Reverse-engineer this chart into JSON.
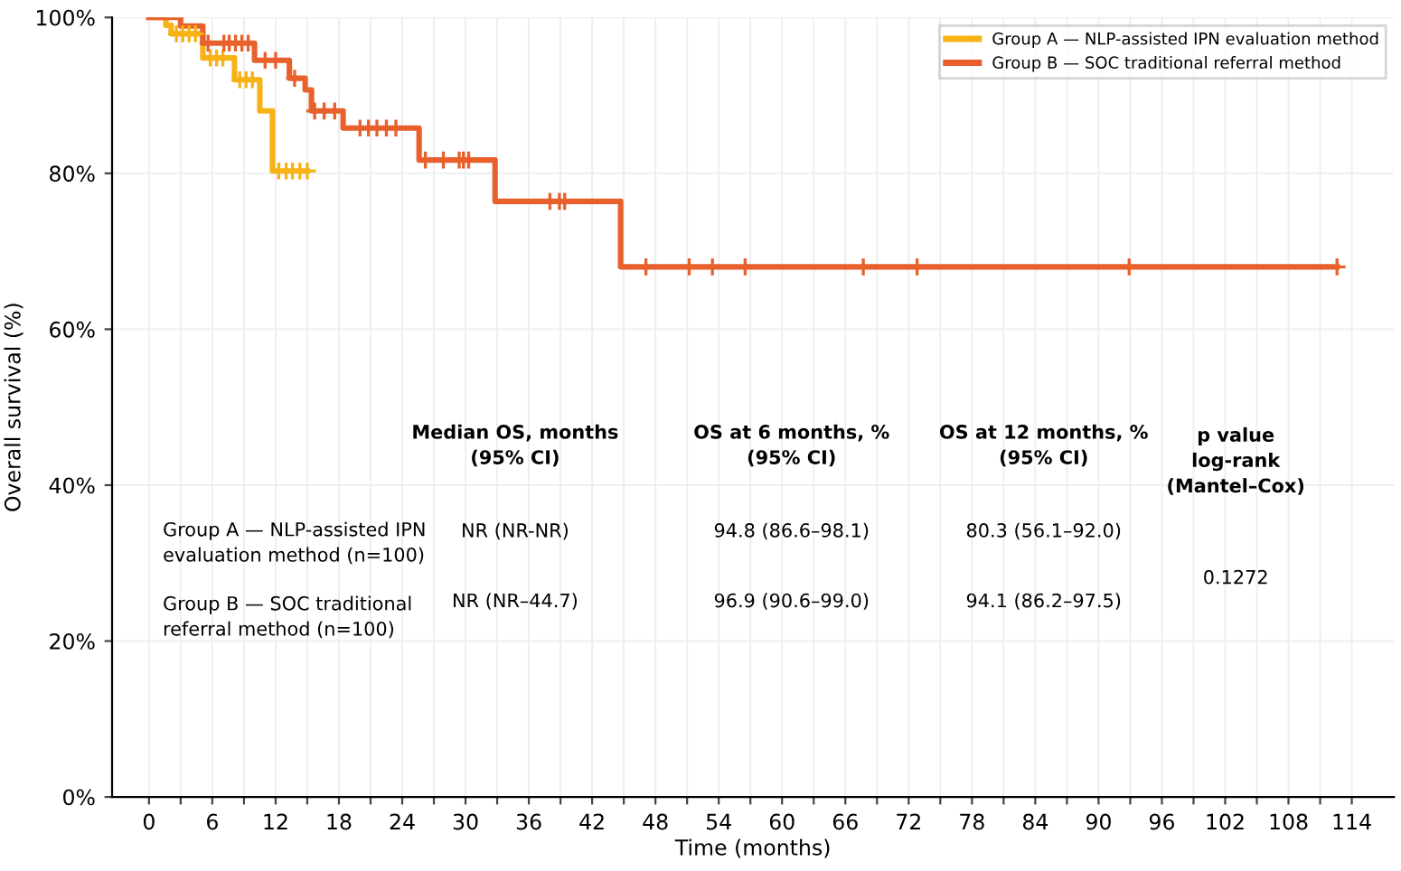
{
  "chart_data": {
    "type": "step",
    "xlabel": "Time (months)",
    "ylabel": "Overall survival (%)",
    "xlim": [
      -3.5,
      118
    ],
    "ylim": [
      0,
      100
    ],
    "xticks": [
      0,
      {
        "value": 3,
        "label": null
      },
      6,
      {
        "value": 9,
        "label": null
      },
      12,
      {
        "value": 15,
        "label": null
      },
      18,
      {
        "value": 21,
        "label": null
      },
      24,
      {
        "value": 27,
        "label": null
      },
      30,
      {
        "value": 33,
        "label": null
      },
      36,
      {
        "value": 39,
        "label": null
      },
      42,
      {
        "value": 45,
        "label": null
      },
      48,
      {
        "value": 51,
        "label": null
      },
      54,
      {
        "value": 57,
        "label": null
      },
      60,
      {
        "value": 63,
        "label": null
      },
      66,
      {
        "value": 69,
        "label": null
      },
      72,
      {
        "value": 75,
        "label": null
      },
      78,
      {
        "value": 81,
        "label": null
      },
      84,
      {
        "value": 87,
        "label": null
      },
      90,
      {
        "value": 93,
        "label": null
      },
      96,
      {
        "value": 99,
        "label": null
      },
      102,
      {
        "value": 105,
        "label": null
      },
      108,
      {
        "value": 111,
        "label": null
      },
      114
    ],
    "yticks": [
      {
        "value": 0,
        "label": "0%"
      },
      {
        "value": 20,
        "label": "20%"
      },
      {
        "value": 40,
        "label": "40%"
      },
      {
        "value": 60,
        "label": "60%"
      },
      {
        "value": 80,
        "label": "80%"
      },
      {
        "value": 100,
        "label": "100%"
      }
    ],
    "grid": true,
    "legend": "top right",
    "series": [
      {
        "name": "Group A — NLP-assisted IPN evaluation method",
        "color": "#f7b215",
        "x": [
          0,
          1.6,
          2.1,
          5.1,
          8.1,
          10.5,
          11.7,
          15.0
        ],
        "values": [
          100,
          99,
          97.9,
          94.8,
          92,
          88,
          80.3,
          80.3
        ]
      },
      {
        "name": "Group B — SOC traditional referral method",
        "color": "#e8602c",
        "x": [
          0,
          3.0,
          5.1,
          10.0,
          13.3,
          14.8,
          15.4,
          18.4,
          25.6,
          32.8,
          44.7,
          112.6
        ],
        "values": [
          100,
          98.9,
          96.7,
          94.5,
          92.2,
          90.7,
          88,
          85.8,
          81.7,
          76.4,
          68,
          68
        ]
      },
      {
        "type": "scatter",
        "marker": "cross",
        "color": "#f7b215",
        "x": [
          2.6,
          3.2,
          3.8,
          4.4,
          5.8,
          6.4,
          7.0,
          8.6,
          9.2,
          9.8,
          12.3,
          13.0,
          13.6,
          14.3,
          15.0
        ],
        "values": [
          97.9,
          97.9,
          97.9,
          97.9,
          94.8,
          94.8,
          94.8,
          92,
          92,
          92,
          80.3,
          80.3,
          80.3,
          80.3,
          80.3
        ]
      },
      {
        "type": "scatter",
        "marker": "cross",
        "color": "#e8602c",
        "x": [
          5.6,
          7.1,
          7.6,
          8.2,
          8.8,
          9.4,
          11.0,
          12.0,
          13.8,
          15.7,
          16.6,
          17.6,
          20.0,
          20.8,
          21.6,
          22.5,
          23.4,
          26.2,
          27.9,
          29.4,
          29.8,
          30.3,
          38.0,
          38.9,
          39.4,
          47.1,
          51.2,
          53.4,
          56.5,
          67.7,
          72.8,
          92.9,
          112.6
        ],
        "values": [
          96.7,
          96.7,
          96.7,
          96.7,
          96.7,
          96.7,
          94.5,
          94.5,
          92.2,
          88,
          88,
          88,
          85.8,
          85.8,
          85.8,
          85.8,
          85.8,
          81.7,
          81.7,
          81.7,
          81.7,
          81.7,
          76.4,
          76.4,
          76.4,
          68,
          68,
          68,
          68,
          68,
          68,
          68,
          68
        ]
      }
    ],
    "annotations": [
      "Median OS, months\n(95% CI)",
      "OS at 6 months, %\n(95% CI)",
      "OS at 12 months, %\n(95% CI)",
      "p value\nlog-rank\n(Mantel–Cox)",
      "Group A — NLP-assisted IPN\nevaluation method (n=100)",
      "NR (NR-NR)",
      "94.8 (86.6–98.1)",
      "80.3 (56.1–92.0)",
      "0.1272",
      "Group B — SOC traditional\nreferral method (n=100)",
      "NR (NR–44.7)",
      "96.9 (90.6–99.0)",
      "94.1 (86.2–97.5)"
    ]
  }
}
